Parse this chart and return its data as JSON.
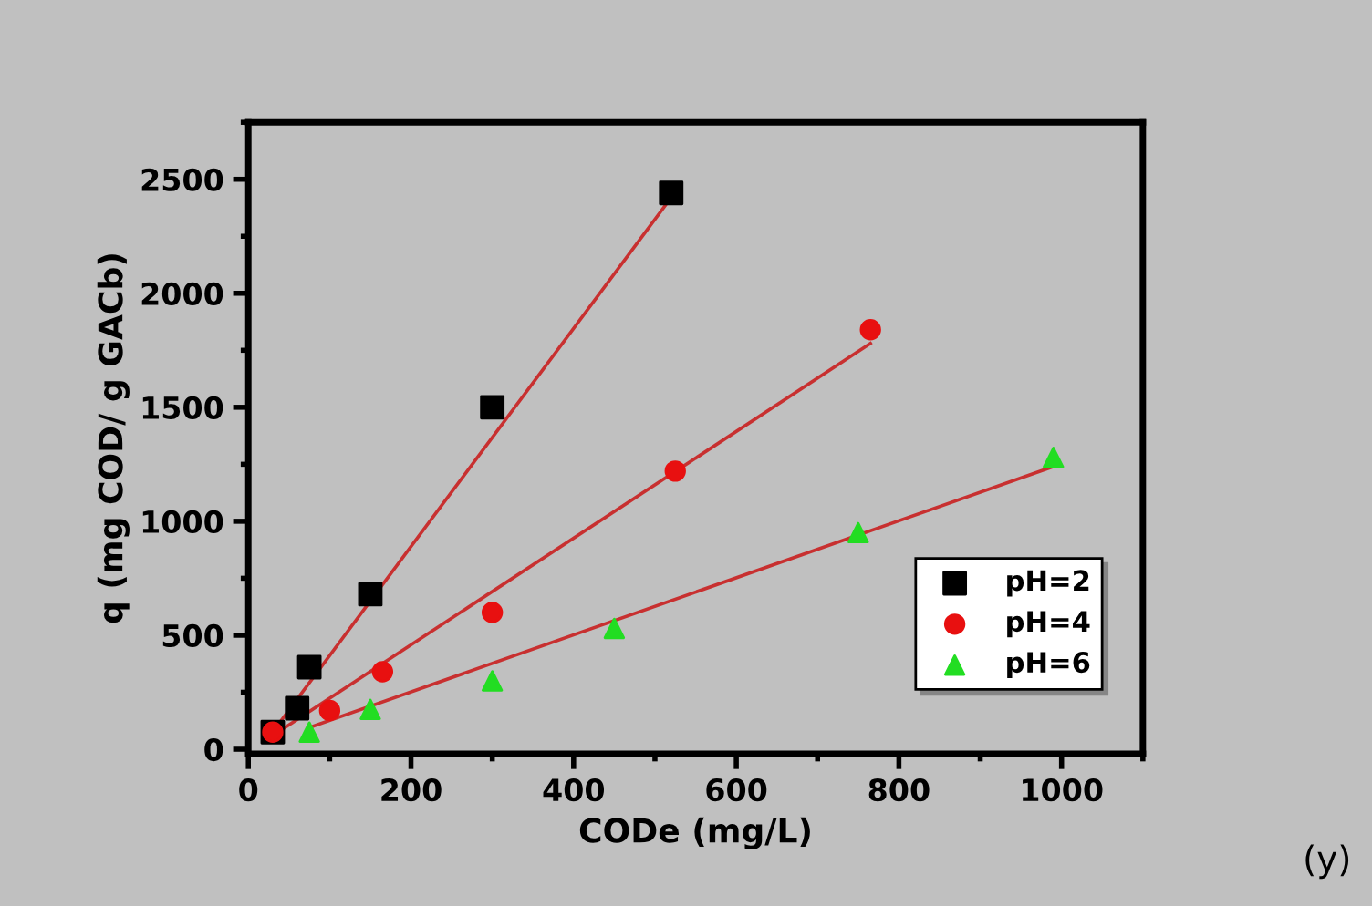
{
  "chart_data": {
    "type": "scatter",
    "xlabel": "CODe (mg/L)",
    "ylabel": "q (mg COD/ g GACb)",
    "annotations": [
      "(y)"
    ],
    "xlim": [
      0,
      1100
    ],
    "ylim": [
      -20,
      2750
    ],
    "xticks": [
      0,
      200,
      400,
      600,
      800,
      1000
    ],
    "yticks": [
      0,
      500,
      1000,
      1500,
      2000,
      2500
    ],
    "grid": false,
    "legend": "bottom right",
    "series": [
      {
        "name": "pH=2",
        "color": "#000000",
        "marker": "square",
        "x": [
          30,
          60,
          75,
          150,
          300,
          520
        ],
        "values": [
          75,
          180,
          360,
          680,
          1500,
          2440
        ]
      },
      {
        "name": "pH=4",
        "color": "#e81010",
        "marker": "circle",
        "x": [
          30,
          100,
          165,
          300,
          525,
          765
        ],
        "values": [
          75,
          170,
          340,
          600,
          1220,
          1840
        ]
      },
      {
        "name": "pH=6",
        "color": "#22dd22",
        "marker": "triangle",
        "x": [
          75,
          150,
          300,
          450,
          750,
          990
        ],
        "values": [
          75,
          175,
          300,
          530,
          950,
          1280
        ]
      },
      {
        "type": "line",
        "color": "#c83030",
        "x": [
          35,
          520
        ],
        "values": [
          100,
          2420
        ]
      },
      {
        "type": "line",
        "color": "#c83030",
        "x": [
          30,
          765
        ],
        "values": [
          60,
          1780
        ]
      },
      {
        "type": "line",
        "color": "#c83030",
        "x": [
          75,
          990
        ],
        "values": [
          95,
          1240
        ]
      }
    ]
  }
}
